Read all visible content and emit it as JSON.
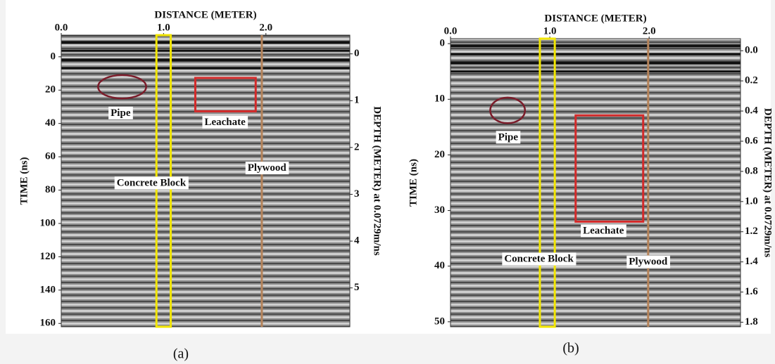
{
  "chart_data": [
    {
      "type": "radargram",
      "title": "DISTANCE (METER)",
      "y_label": "TIME (ns)",
      "y2_label": "DEPTH (METER) at 0.0729m/ns",
      "caption": "(a)",
      "xlim": [
        0,
        2.82
      ],
      "xticks": [
        {
          "value": 0,
          "label": "0.0"
        },
        {
          "value": 1,
          "label": "1.0"
        },
        {
          "value": 2,
          "label": "2.0"
        }
      ],
      "ylim": [
        -13,
        162
      ],
      "yticks": [
        0,
        20,
        40,
        60,
        80,
        100,
        120,
        140,
        160
      ],
      "y2lim": [
        -0.4,
        5.83
      ],
      "y2ticks": [
        0,
        1,
        2,
        3,
        4,
        5
      ],
      "annotations": [
        {
          "label": "Pipe",
          "shape": "ellipse",
          "color": "#7b1c2a",
          "x": [
            0.36,
            0.83
          ],
          "y": [
            11,
            25
          ],
          "label_at": [
            0.58,
            34
          ]
        },
        {
          "label": "Leachate",
          "shape": "rect",
          "color": "#d42a2a",
          "x": [
            1.31,
            1.9
          ],
          "y": [
            12.7,
            32.7
          ],
          "label_at": [
            1.6,
            39.5
          ]
        },
        {
          "label": "Concrete Block",
          "shape": "rect",
          "color": "#f2e600",
          "x": [
            0.93,
            1.07
          ],
          "y": [
            -13,
            162
          ],
          "label_at": [
            0.88,
            76
          ]
        },
        {
          "label": "Plywood",
          "shape": "vline",
          "color": "#b5835a",
          "x": [
            1.96
          ],
          "y": [
            -13,
            162
          ],
          "label_at": [
            2.01,
            67
          ]
        }
      ]
    },
    {
      "type": "radargram",
      "title": "DISTANCE (METER)",
      "y_label": "TIME (ns)",
      "y2_label": "DEPTH (METER) at 0.0729m/ns",
      "caption": "(b)",
      "xlim": [
        0,
        2.92
      ],
      "xticks": [
        {
          "value": 0,
          "label": "0.0"
        },
        {
          "value": 1,
          "label": "1.0"
        },
        {
          "value": 2,
          "label": "2.0"
        }
      ],
      "ylim": [
        -0.9,
        50.9
      ],
      "yticks": [
        0,
        10,
        20,
        30,
        40,
        50
      ],
      "y2lim": [
        -0.08,
        1.83
      ],
      "y2ticks": [
        {
          "value": 0,
          "label": "0.0"
        },
        {
          "value": 0.2,
          "label": "0.2"
        },
        {
          "value": 0.4,
          "label": "0.4"
        },
        {
          "value": 0.6,
          "label": "0.6"
        },
        {
          "value": 0.8,
          "label": "0.8"
        },
        {
          "value": 1,
          "label": "1.0"
        },
        {
          "value": 1.2,
          "label": "1.2"
        },
        {
          "value": 1.4,
          "label": "1.4"
        },
        {
          "value": 1.6,
          "label": "1.6"
        },
        {
          "value": 1.8,
          "label": "1.8"
        }
      ],
      "annotations": [
        {
          "label": "Pipe",
          "shape": "ellipse",
          "color": "#7b1c2a",
          "x": [
            0.4,
            0.75
          ],
          "y": [
            9.7,
            14.3
          ],
          "label_at": [
            0.58,
            16.9
          ]
        },
        {
          "label": "Leachate",
          "shape": "rect",
          "color": "#d42a2a",
          "x": [
            1.26,
            1.94
          ],
          "y": [
            12.9,
            32
          ],
          "label_at": [
            1.54,
            33.7
          ]
        },
        {
          "label": "Concrete Block",
          "shape": "rect",
          "color": "#f2e600",
          "x": [
            0.9,
            1.05
          ],
          "y": [
            -0.9,
            50.9
          ],
          "label_at": [
            0.89,
            38.8
          ]
        },
        {
          "label": "Plywood",
          "shape": "vline",
          "color": "#b5835a",
          "x": [
            1.99
          ],
          "y": [
            -0.9,
            50.9
          ],
          "label_at": [
            1.99,
            39.3
          ]
        }
      ]
    }
  ]
}
